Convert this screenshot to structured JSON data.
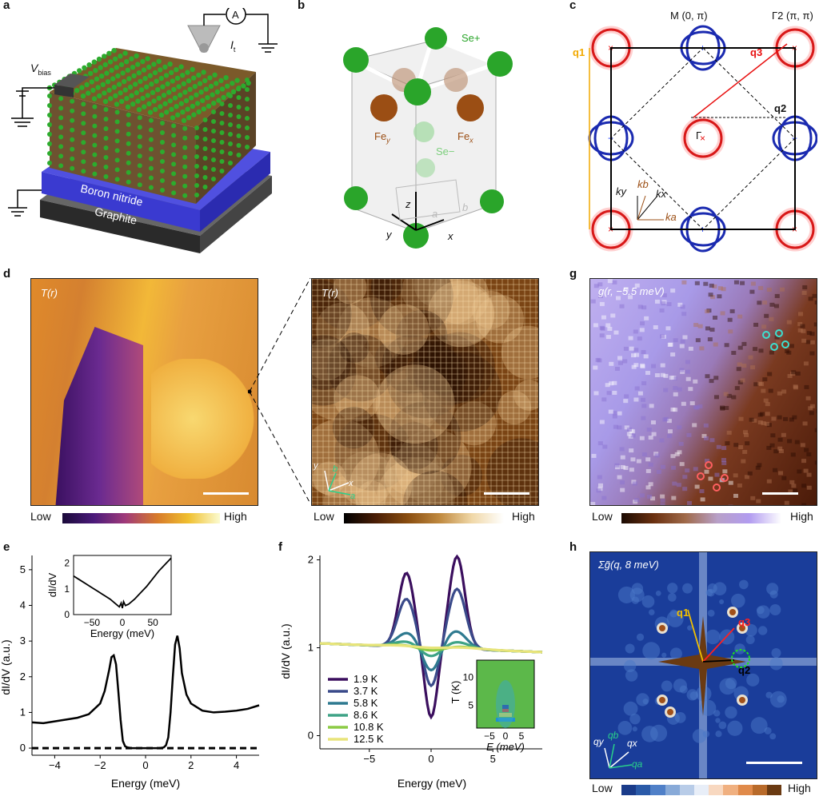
{
  "panels": {
    "a": {
      "letter": "a",
      "vbias": "V",
      "vbias_sub": "bias",
      "current": "I",
      "current_sub": "t",
      "ammeter": "A",
      "layer1": "Boron nitride",
      "layer2": "Graphite"
    },
    "b": {
      "letter": "b",
      "se_plus": "Se+",
      "se_minus": "Se−",
      "fe_y": "Fe",
      "fe_y_sub": "y",
      "fe_x": "Fe",
      "fe_x_sub": "x",
      "ax_z": "z",
      "ax_y": "y",
      "ax_x": "x",
      "ax_a": "a",
      "ax_b": "b"
    },
    "c": {
      "letter": "c",
      "M_label": "M (0, π)",
      "gamma2_label": "Γ2 (π, π)",
      "gamma": "Γ",
      "q1": "q1",
      "q2": "q2",
      "q3": "q3",
      "ky": "ky",
      "kx": "kx",
      "kb": "kb",
      "ka": "ka"
    },
    "d": {
      "letter": "d",
      "label_left": "T(r)",
      "label_right": "T(r)",
      "cb_low": "Low",
      "cb_high": "High",
      "ax_y": "y",
      "ax_x": "x",
      "ax_b": "b",
      "ax_a": "a"
    },
    "dzoom": {
      "cb_low": "Low",
      "cb_high": "High"
    },
    "g": {
      "letter": "g",
      "label": "g(r, −5.5 meV)",
      "cb_low": "Low",
      "cb_high": "High"
    },
    "h": {
      "letter": "h",
      "label": "Σg̃(q, 8 meV)",
      "cb_low": "Low",
      "cb_high": "High",
      "q1": "q1",
      "q2": "q2",
      "q3": "q3",
      "qy": "qy",
      "qb": "qb",
      "qx": "qx",
      "qa": "qa"
    },
    "e": {
      "letter": "e"
    },
    "f": {
      "letter": "f"
    }
  },
  "colors": {
    "cb_d_left": [
      "#1a0a3a",
      "#4b1a7a",
      "#a03a7a",
      "#d77a2a",
      "#f0c030",
      "#fbfbd0"
    ],
    "cb_d_right": [
      "#000000",
      "#4a1e06",
      "#8a4e10",
      "#c08a40",
      "#f0d8a8",
      "#ffffff"
    ],
    "cb_g": [
      "#1a0a02",
      "#6a3010",
      "#a06a4a",
      "#b8a0c8",
      "#b29cf0",
      "#ffffff"
    ],
    "cb_h": [
      "#1a3b8a",
      "#3a6cc0",
      "#9ebfe0",
      "#f0e4d8",
      "#e08a4a",
      "#8a4a1a"
    ]
  },
  "chart_data": [
    {
      "id": "e-main",
      "type": "line",
      "xlabel": "Energy (meV)",
      "ylabel": "dI/dV (a.u.)",
      "xlim": [
        -5,
        5
      ],
      "ylim": [
        -0.2,
        5.4
      ],
      "xticks": [
        -4,
        -2,
        0,
        2,
        4
      ],
      "yticks": [
        0,
        1,
        2,
        3,
        4,
        5
      ],
      "series": [
        {
          "name": "spectrum",
          "x": [
            -5,
            -4.5,
            -4,
            -3.5,
            -3,
            -2.5,
            -2,
            -1.8,
            -1.6,
            -1.5,
            -1.4,
            -1.3,
            -1.2,
            -1.1,
            -1.0,
            -0.9,
            -0.8,
            -0.6,
            -0.4,
            -0.2,
            0,
            0.2,
            0.4,
            0.6,
            0.8,
            0.9,
            1.0,
            1.1,
            1.2,
            1.3,
            1.4,
            1.5,
            1.6,
            1.8,
            2.0,
            2.5,
            3,
            3.5,
            4,
            4.5,
            5
          ],
          "y": [
            0.72,
            0.7,
            0.75,
            0.8,
            0.85,
            0.95,
            1.25,
            1.6,
            2.2,
            2.55,
            2.6,
            2.35,
            1.6,
            0.8,
            0.2,
            0.05,
            0.02,
            0.0,
            0.0,
            0.0,
            0.0,
            0.0,
            0.0,
            0.0,
            0.02,
            0.08,
            0.3,
            1.0,
            2.0,
            2.9,
            3.15,
            2.8,
            2.1,
            1.5,
            1.25,
            1.05,
            1.0,
            1.02,
            1.05,
            1.1,
            1.2
          ]
        },
        {
          "name": "zero",
          "x": [
            -5,
            5
          ],
          "y": [
            0,
            0
          ],
          "dashed": true
        }
      ]
    },
    {
      "id": "e-inset",
      "type": "line",
      "xlabel": "Energy (meV)",
      "ylabel": "dI/dV",
      "xlim": [
        -80,
        80
      ],
      "ylim": [
        0,
        2.3
      ],
      "xticks": [
        -50,
        0,
        50
      ],
      "yticks": [
        0,
        1,
        2
      ],
      "series": [
        {
          "name": "wide",
          "x": [
            -80,
            -70,
            -60,
            -50,
            -40,
            -30,
            -20,
            -10,
            -5,
            -2,
            0,
            2,
            5,
            10,
            20,
            30,
            40,
            50,
            60,
            70,
            80
          ],
          "y": [
            1.5,
            1.35,
            1.2,
            1.05,
            0.9,
            0.75,
            0.6,
            0.4,
            0.3,
            0.45,
            0.25,
            0.5,
            0.35,
            0.4,
            0.6,
            0.85,
            1.1,
            1.4,
            1.7,
            1.95,
            2.2
          ]
        }
      ]
    },
    {
      "id": "f-main",
      "type": "line",
      "xlabel": "Energy (meV)",
      "ylabel": "dI/dV (a.u.)",
      "xlim": [
        -9,
        9
      ],
      "ylim": [
        -0.15,
        2.05
      ],
      "xticks": [
        -5,
        0,
        5
      ],
      "yticks": [
        0,
        1,
        2
      ],
      "series": [
        {
          "name": "1.9 K",
          "color": "#3b0f5e",
          "amp": 1.05,
          "gap": 2.1,
          "width": 0.9,
          "dip": 0.8
        },
        {
          "name": "3.7 K",
          "color": "#3a4a8a",
          "amp": 0.68,
          "gap": 2.1,
          "width": 1.0,
          "dip": 0.45
        },
        {
          "name": "5.8 K",
          "color": "#2f7a90",
          "amp": 0.2,
          "gap": 2.0,
          "width": 1.2,
          "dip": 0.28
        },
        {
          "name": "8.6 K",
          "color": "#3ea386",
          "amp": 0.08,
          "gap": 2.0,
          "width": 1.5,
          "dip": 0.12
        },
        {
          "name": "10.8 K",
          "color": "#8ccb45",
          "amp": 0.03,
          "gap": 2.0,
          "width": 2.0,
          "dip": 0.05
        },
        {
          "name": "12.5 K",
          "color": "#e8e47a",
          "amp": 0.02,
          "gap": 2.0,
          "width": 2.5,
          "dip": 0.02
        }
      ]
    },
    {
      "id": "f-inset",
      "type": "heatmap",
      "xlabel": "E (meV)",
      "ylabel": "T (K)",
      "xticks": [
        -5,
        0,
        5
      ],
      "yticks": [
        5,
        10
      ],
      "xlim": [
        -9,
        9
      ],
      "ylim": [
        1,
        13
      ]
    }
  ]
}
